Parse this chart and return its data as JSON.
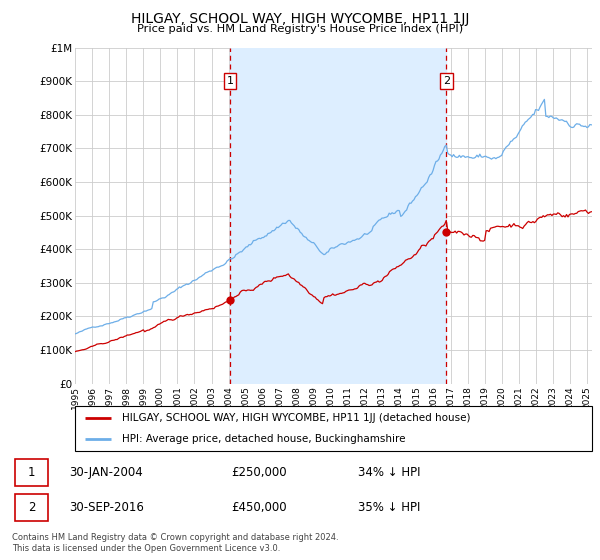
{
  "title": "HILGAY, SCHOOL WAY, HIGH WYCOMBE, HP11 1JJ",
  "subtitle": "Price paid vs. HM Land Registry's House Price Index (HPI)",
  "hpi_color": "#6daee8",
  "price_color": "#cc0000",
  "shade_color": "#ddeeff",
  "background_color": "#ffffff",
  "grid_color": "#cccccc",
  "sale1_date": "30-JAN-2004",
  "sale1_price": "£250,000",
  "sale1_hpi_diff": "34% ↓ HPI",
  "sale2_date": "30-SEP-2016",
  "sale2_price": "£450,000",
  "sale2_hpi_diff": "35% ↓ HPI",
  "legend_label1": "HILGAY, SCHOOL WAY, HIGH WYCOMBE, HP11 1JJ (detached house)",
  "legend_label2": "HPI: Average price, detached house, Buckinghamshire",
  "footer": "Contains HM Land Registry data © Crown copyright and database right 2024.\nThis data is licensed under the Open Government Licence v3.0.",
  "ylim": [
    0,
    1000000
  ],
  "ytick_labels": [
    "£0",
    "£100K",
    "£200K",
    "£300K",
    "£400K",
    "£500K",
    "£600K",
    "£700K",
    "£800K",
    "£900K",
    "£1M"
  ],
  "sale1_x": 2004.08,
  "sale2_x": 2016.75,
  "sale1_marker_y": 250000,
  "sale2_marker_y": 450000,
  "xlim_left": 1995.0,
  "xlim_right": 2025.3
}
